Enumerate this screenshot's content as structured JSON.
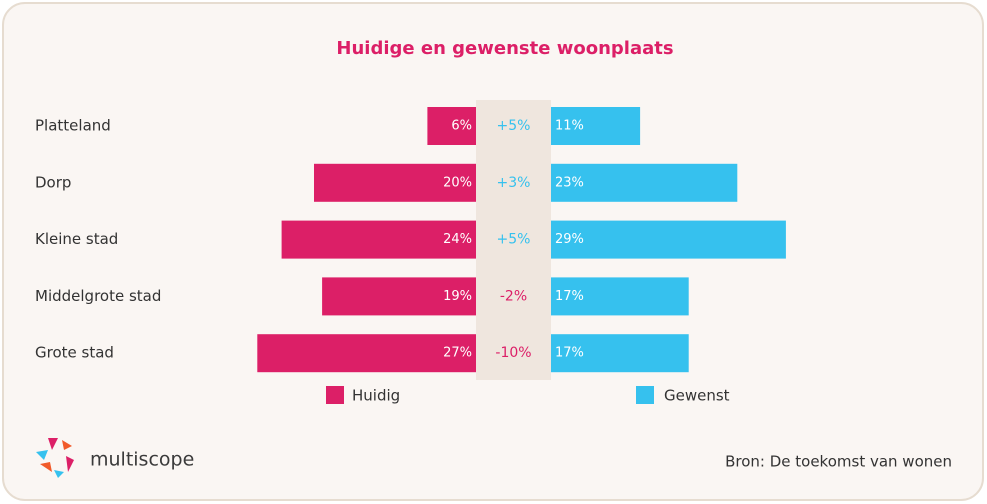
{
  "chart_data": {
    "type": "butterfly",
    "title": "Huidige en gewenste woonplaats",
    "categories": [
      "Platteland",
      "Dorp",
      "Kleine stad",
      "Middelgrote stad",
      "Grote stad"
    ],
    "series": [
      {
        "name": "Huidig",
        "color": "#dc1f67",
        "values": [
          6,
          20,
          24,
          19,
          27
        ],
        "value_labels": [
          "6%",
          "20%",
          "24%",
          "19%",
          "27%"
        ]
      },
      {
        "name": "Gewenst",
        "color": "#36c1ee",
        "values": [
          11,
          23,
          29,
          17,
          17
        ],
        "value_labels": [
          "11%",
          "23%",
          "29%",
          "17%",
          "17%"
        ]
      }
    ],
    "difference": {
      "values": [
        5,
        3,
        5,
        -2,
        -10
      ],
      "value_labels": [
        "+5%",
        "+3%",
        "+5%",
        "-2%",
        "-10%"
      ],
      "positive_color": "#36c1ee",
      "negative_color": "#dc1f67"
    },
    "source": "Bron: De toekomst van wonen",
    "brand": "multiscope"
  }
}
